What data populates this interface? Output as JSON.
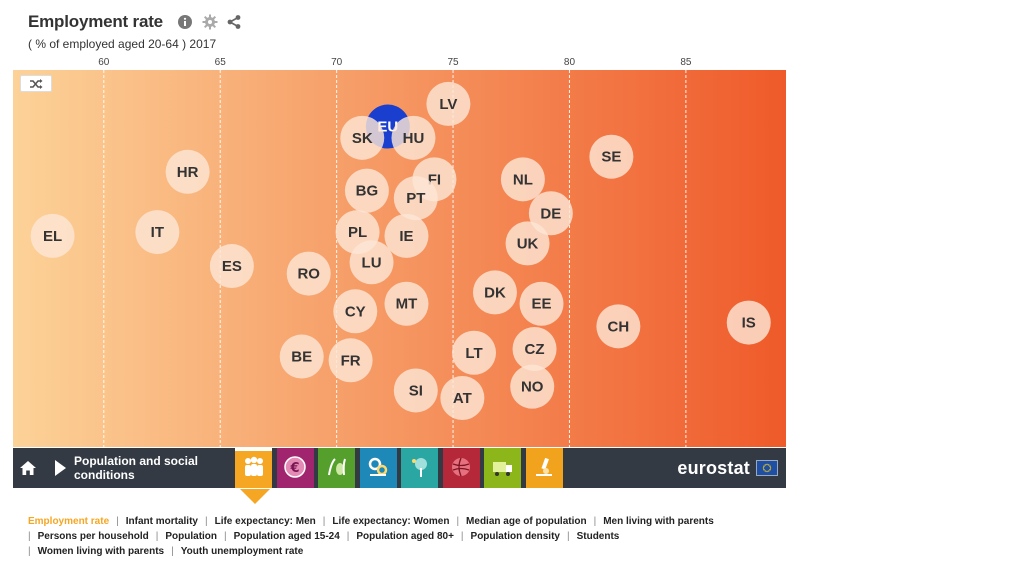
{
  "header": {
    "title": "Employment rate",
    "subtitle": "( % of employed aged 20-64 ) 2017",
    "icons": [
      "info-icon",
      "gear-icon",
      "share-icon"
    ]
  },
  "colors": {
    "gradient_start": "#fcd298",
    "gradient_end": "#ef5a2a",
    "bubble_fill": "#fde5d4",
    "highlight_fill": "#1a3fcf",
    "navbar_bg": "#333a44",
    "accent": "#f5a623"
  },
  "chart_data": {
    "type": "scatter",
    "title": "Employment rate",
    "subtitle": "( % of employed aged 20-64 ) 2017",
    "x_axis": {
      "ticks": [
        60,
        65,
        70,
        75,
        80,
        85
      ],
      "range": [
        56.1,
        89.3
      ]
    },
    "y_axis": {
      "meaning": "none (vertical position is arbitrary)",
      "range": [
        0,
        1
      ]
    },
    "grid": true,
    "points": [
      {
        "label": "EU",
        "x": 72.2,
        "y": 0.15,
        "highlight": true
      },
      {
        "label": "LV",
        "x": 74.8,
        "y": 0.09
      },
      {
        "label": "SK",
        "x": 71.1,
        "y": 0.18
      },
      {
        "label": "HU",
        "x": 73.3,
        "y": 0.18
      },
      {
        "label": "SE",
        "x": 81.8,
        "y": 0.23
      },
      {
        "label": "HR",
        "x": 63.6,
        "y": 0.27
      },
      {
        "label": "FI",
        "x": 74.2,
        "y": 0.29
      },
      {
        "label": "NL",
        "x": 78.0,
        "y": 0.29
      },
      {
        "label": "BG",
        "x": 71.3,
        "y": 0.32
      },
      {
        "label": "PT",
        "x": 73.4,
        "y": 0.34
      },
      {
        "label": "DE",
        "x": 79.2,
        "y": 0.38
      },
      {
        "label": "PL",
        "x": 70.9,
        "y": 0.43
      },
      {
        "label": "IT",
        "x": 62.3,
        "y": 0.43
      },
      {
        "label": "EL",
        "x": 57.8,
        "y": 0.44
      },
      {
        "label": "IE",
        "x": 73.0,
        "y": 0.44
      },
      {
        "label": "UK",
        "x": 78.2,
        "y": 0.46
      },
      {
        "label": "ES",
        "x": 65.5,
        "y": 0.52
      },
      {
        "label": "LU",
        "x": 71.5,
        "y": 0.51
      },
      {
        "label": "RO",
        "x": 68.8,
        "y": 0.54
      },
      {
        "label": "DK",
        "x": 76.8,
        "y": 0.59
      },
      {
        "label": "MT",
        "x": 73.0,
        "y": 0.62
      },
      {
        "label": "EE",
        "x": 78.8,
        "y": 0.62
      },
      {
        "label": "CY",
        "x": 70.8,
        "y": 0.64
      },
      {
        "label": "CH",
        "x": 82.1,
        "y": 0.68
      },
      {
        "label": "IS",
        "x": 87.7,
        "y": 0.67
      },
      {
        "label": "BE",
        "x": 68.5,
        "y": 0.76
      },
      {
        "label": "FR",
        "x": 70.6,
        "y": 0.77
      },
      {
        "label": "LT",
        "x": 75.9,
        "y": 0.75
      },
      {
        "label": "CZ",
        "x": 78.5,
        "y": 0.74
      },
      {
        "label": "SI",
        "x": 73.4,
        "y": 0.85
      },
      {
        "label": "AT",
        "x": 75.4,
        "y": 0.87
      },
      {
        "label": "NO",
        "x": 78.4,
        "y": 0.84
      }
    ]
  },
  "navbar": {
    "home_icon": "home-icon",
    "theme_label_line1": "Population and social",
    "theme_label_line2": "conditions",
    "tabs": [
      {
        "name": "people-icon",
        "color": "#f5a623",
        "active": true
      },
      {
        "name": "euro-icon",
        "color": "#a0256e",
        "active": false
      },
      {
        "name": "agriculture-icon",
        "color": "#55a02c",
        "active": false
      },
      {
        "name": "industry-icon",
        "color": "#1e88b8",
        "active": false
      },
      {
        "name": "environment-icon",
        "color": "#2aa7a3",
        "active": false
      },
      {
        "name": "globe-icon",
        "color": "#b5283a",
        "active": false
      },
      {
        "name": "transport-icon",
        "color": "#8cb619",
        "active": false
      },
      {
        "name": "science-icon",
        "color": "#f1a31d",
        "active": false
      }
    ],
    "brand": "eurostat"
  },
  "indicators": [
    {
      "label": "Employment rate",
      "active": true
    },
    {
      "label": "Infant mortality"
    },
    {
      "label": "Life expectancy: Men"
    },
    {
      "label": "Life expectancy: Women"
    },
    {
      "label": "Median age of population"
    },
    {
      "label": "Men living with parents"
    },
    {
      "label": "Persons per household"
    },
    {
      "label": "Population"
    },
    {
      "label": "Population aged 15-24"
    },
    {
      "label": "Population aged 80+"
    },
    {
      "label": "Population density"
    },
    {
      "label": "Students"
    },
    {
      "label": "Women living with parents"
    },
    {
      "label": "Youth unemployment rate"
    }
  ]
}
